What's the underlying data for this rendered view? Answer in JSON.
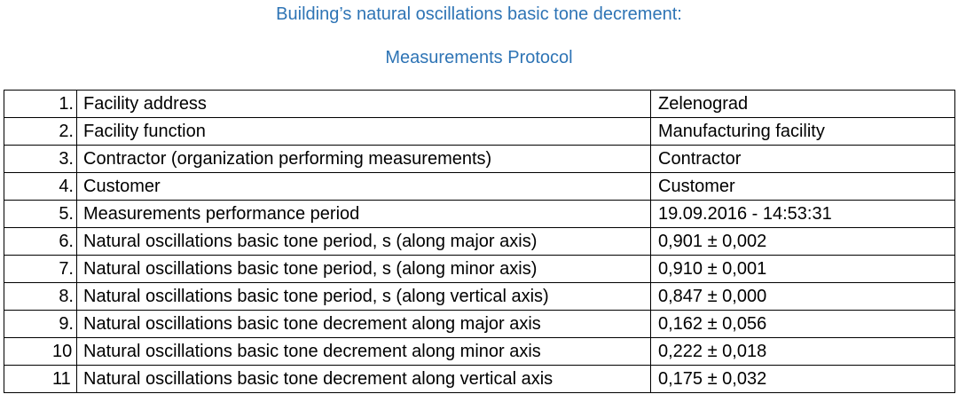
{
  "colors": {
    "title_text": "#2E74B5",
    "table_border": "#000000",
    "body_text": "#000000"
  },
  "header": {
    "title_line1": "Building’s natural oscillations basic tone decrement:",
    "title_line2": "Measurements Protocol"
  },
  "table": {
    "rows": [
      {
        "num": "1.",
        "parameter": "Facility address",
        "value": "Zelenograd"
      },
      {
        "num": "2.",
        "parameter": "Facility function",
        "value": "Manufacturing facility"
      },
      {
        "num": "3.",
        "parameter": "Contractor (organization performing measurements)",
        "value": "Contractor"
      },
      {
        "num": "4.",
        "parameter": "Customer",
        "value": "Customer"
      },
      {
        "num": "5.",
        "parameter": "Measurements performance period",
        "value": "19.09.2016 - 14:53:31"
      },
      {
        "num": "6.",
        "parameter": "Natural oscillations basic tone period, s (along major axis)",
        "value": "0,901 ± 0,002"
      },
      {
        "num": "7.",
        "parameter": "Natural oscillations basic tone period, s (along minor axis)",
        "value": "0,910 ± 0,001"
      },
      {
        "num": "8.",
        "parameter": "Natural oscillations basic tone period, s (along vertical axis)",
        "value": "0,847 ± 0,000"
      },
      {
        "num": "9.",
        "parameter": "Natural oscillations basic tone decrement along major axis",
        "value": "0,162 ± 0,056"
      },
      {
        "num": "10",
        "parameter": "Natural oscillations basic tone decrement along minor axis",
        "value": "0,222 ± 0,018"
      },
      {
        "num": "11",
        "parameter": "Natural oscillations basic tone decrement along vertical axis",
        "value": "0,175 ± 0,032"
      }
    ]
  }
}
